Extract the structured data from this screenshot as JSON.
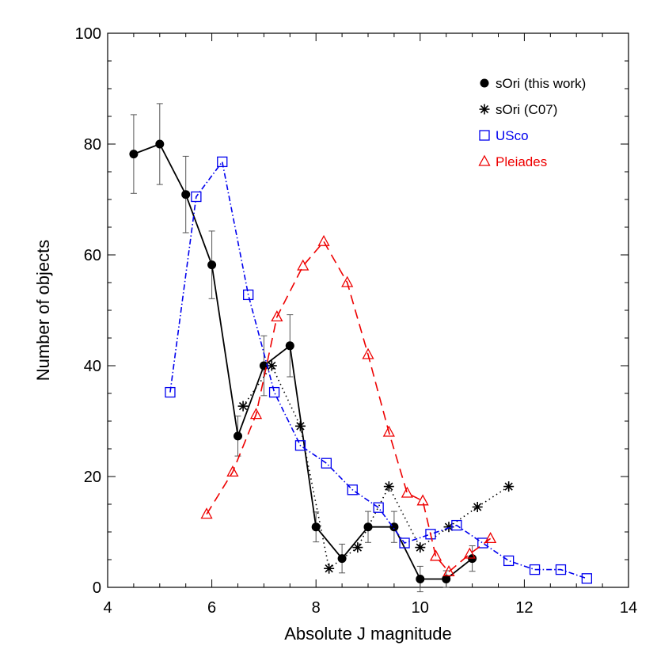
{
  "chart_data": {
    "type": "line",
    "xlabel": "Absolute J magnitude",
    "ylabel": "Number of objects",
    "xlim": [
      4,
      14
    ],
    "ylim": [
      0,
      100
    ],
    "xticks": [
      "4",
      "6",
      "8",
      "10",
      "12",
      "14"
    ],
    "yticks": [
      "0",
      "20",
      "40",
      "60",
      "80",
      "100"
    ],
    "grid": false,
    "legend_position": "top-right",
    "series": [
      {
        "name": "sOri (this work)",
        "color": "#000000",
        "marker": "filled-circle",
        "line": "solid",
        "points": [
          {
            "x": 4.5,
            "y": 78.2,
            "err": 7.1
          },
          {
            "x": 5.0,
            "y": 80.0,
            "err": 7.3
          },
          {
            "x": 5.5,
            "y": 70.9,
            "err": 6.9
          },
          {
            "x": 6.0,
            "y": 58.2,
            "err": 6.1
          },
          {
            "x": 6.5,
            "y": 27.3,
            "err": 3.6
          },
          {
            "x": 7.0,
            "y": 40.0,
            "err": 5.4
          },
          {
            "x": 7.5,
            "y": 43.6,
            "err": 5.6
          },
          {
            "x": 8.0,
            "y": 10.9,
            "err": 2.7
          },
          {
            "x": 8.5,
            "y": 5.2,
            "err": 2.6
          },
          {
            "x": 9.0,
            "y": 10.9,
            "err": 2.8
          },
          {
            "x": 9.5,
            "y": 10.9,
            "err": 2.8
          },
          {
            "x": 10.0,
            "y": 1.5,
            "err": 2.3
          },
          {
            "x": 10.5,
            "y": 1.5,
            "err": 1.5
          },
          {
            "x": 11.0,
            "y": 5.2,
            "err": 2.3
          }
        ]
      },
      {
        "name": "sOri (C07)",
        "color": "#000000",
        "marker": "asterisk",
        "line": "dotted",
        "points": [
          {
            "x": 6.6,
            "y": 32.7
          },
          {
            "x": 7.15,
            "y": 40.0
          },
          {
            "x": 7.7,
            "y": 29.1
          },
          {
            "x": 8.25,
            "y": 3.4
          },
          {
            "x": 8.8,
            "y": 7.2
          },
          {
            "x": 9.4,
            "y": 18.2
          },
          {
            "x": 10.0,
            "y": 7.2
          },
          {
            "x": 10.55,
            "y": 10.9
          },
          {
            "x": 11.1,
            "y": 14.5
          },
          {
            "x": 11.7,
            "y": 18.2
          }
        ]
      },
      {
        "name": "USco",
        "color": "#0000ee",
        "marker": "open-square",
        "line": "dash-dot",
        "points": [
          {
            "x": 5.2,
            "y": 35.2
          },
          {
            "x": 5.7,
            "y": 70.5
          },
          {
            "x": 6.2,
            "y": 76.8
          },
          {
            "x": 6.7,
            "y": 52.8
          },
          {
            "x": 7.2,
            "y": 35.2
          },
          {
            "x": 7.7,
            "y": 25.6
          },
          {
            "x": 8.2,
            "y": 22.4
          },
          {
            "x": 8.7,
            "y": 17.6
          },
          {
            "x": 9.2,
            "y": 14.4
          },
          {
            "x": 9.7,
            "y": 8.0
          },
          {
            "x": 10.2,
            "y": 9.6
          },
          {
            "x": 10.7,
            "y": 11.2
          },
          {
            "x": 11.2,
            "y": 8.0
          },
          {
            "x": 11.7,
            "y": 4.8
          },
          {
            "x": 12.2,
            "y": 3.2
          },
          {
            "x": 12.7,
            "y": 3.2
          },
          {
            "x": 13.2,
            "y": 1.6
          }
        ]
      },
      {
        "name": "Pleiades",
        "color": "#ee0000",
        "marker": "open-triangle",
        "line": "dashed",
        "points": [
          {
            "x": 5.9,
            "y": 13.2
          },
          {
            "x": 6.4,
            "y": 20.8
          },
          {
            "x": 6.85,
            "y": 31.2
          },
          {
            "x": 7.25,
            "y": 48.8
          },
          {
            "x": 7.75,
            "y": 58.0
          },
          {
            "x": 8.15,
            "y": 62.4
          },
          {
            "x": 8.6,
            "y": 55.0
          },
          {
            "x": 9.0,
            "y": 42.0
          },
          {
            "x": 9.4,
            "y": 28.0
          },
          {
            "x": 9.75,
            "y": 17.0
          },
          {
            "x": 10.05,
            "y": 15.6
          },
          {
            "x": 10.3,
            "y": 5.6
          },
          {
            "x": 10.55,
            "y": 2.8
          },
          {
            "x": 10.95,
            "y": 6.0
          },
          {
            "x": 11.35,
            "y": 8.8
          }
        ]
      }
    ]
  }
}
